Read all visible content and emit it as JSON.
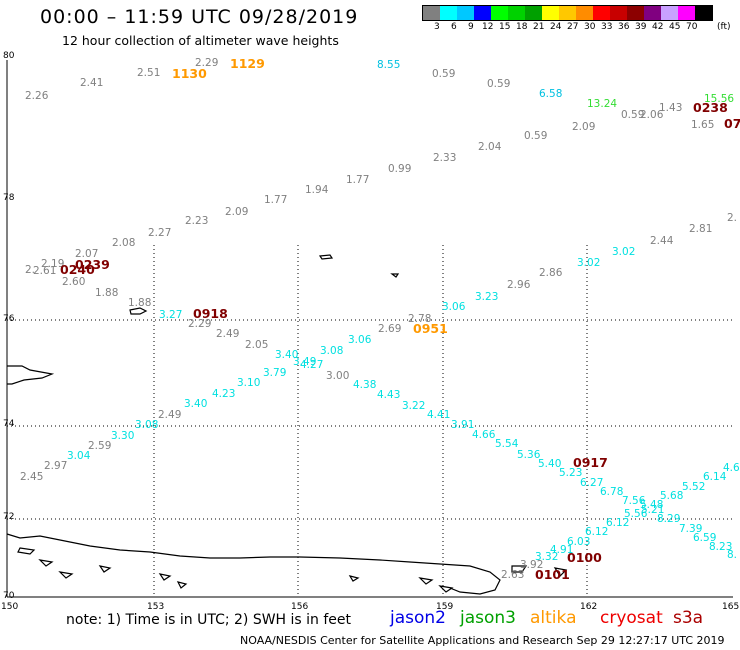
{
  "header": {
    "title": "00:00  –  11:59 UTC 09/28/2019",
    "subtitle": "12 hour collection of altimeter wave heights"
  },
  "legend": {
    "colors": [
      "#808080",
      "#00ffff",
      "#00c8ff",
      "#0000ff",
      "#00ff00",
      "#00d200",
      "#00a000",
      "#ffff00",
      "#ffc800",
      "#ff8c00",
      "#ff0000",
      "#c80000",
      "#8c0000",
      "#800080",
      "#c8a0ff",
      "#ff00ff",
      "#000000"
    ],
    "labels": [
      "3",
      "6",
      "9",
      "12",
      "15",
      "18",
      "21",
      "24",
      "27",
      "30",
      "33",
      "36",
      "39",
      "42",
      "45",
      "70"
    ],
    "unit": "(ft)"
  },
  "axes": {
    "lat_labels": [
      "80",
      "78",
      "76",
      "74",
      "72",
      "70"
    ],
    "lon_labels": [
      "150",
      "153",
      "156",
      "159",
      "162",
      "165"
    ]
  },
  "footer": {
    "note": "note:  1) Time is in UTC;  2) SWH is in feet",
    "satellites": [
      {
        "name": "jason2",
        "color": "#0000e6"
      },
      {
        "name": "jason3",
        "color": "#00a000"
      },
      {
        "name": "altika",
        "color": "#ff9900"
      },
      {
        "name": "cryosat",
        "color": "#ee0000"
      },
      {
        "name": "s3a",
        "color": "#aa0000"
      }
    ],
    "credit": "NOAA/NESDIS Center for Satellite Applications and Research    Sep 29 12:27:17 UTC 2019"
  },
  "time_labels": [
    {
      "text": "1130",
      "color": "#ff9900"
    },
    {
      "text": "1129",
      "color": "#ff9900"
    },
    {
      "text": "0238",
      "color": "#800000"
    },
    {
      "text": "07",
      "color": "#800000"
    },
    {
      "text": "0239",
      "color": "#800000"
    },
    {
      "text": "0240",
      "color": "#800000"
    },
    {
      "text": "0918",
      "color": "#800000"
    },
    {
      "text": "0951",
      "color": "#ff9900"
    },
    {
      "text": "0917",
      "color": "#800000"
    },
    {
      "text": "0100",
      "color": "#800000"
    },
    {
      "text": "0101",
      "color": "#800000"
    }
  ],
  "wave_heights": [
    {
      "text": "2.26",
      "color": "#808080"
    },
    {
      "text": "2.41",
      "color": "#808080"
    },
    {
      "text": "2.51",
      "color": "#808080"
    },
    {
      "text": "2.29",
      "color": "#808080"
    },
    {
      "text": "8.55",
      "color": "#00c0e0"
    },
    {
      "text": "0.59",
      "color": "#808080"
    },
    {
      "text": "0.59",
      "color": "#808080"
    },
    {
      "text": "6.58",
      "color": "#00c0e0"
    },
    {
      "text": "13.24",
      "color": "#33dd33"
    },
    {
      "text": "15.56",
      "color": "#33dd33"
    },
    {
      "text": "1.43",
      "color": "#808080"
    },
    {
      "text": "2.06",
      "color": "#808080"
    },
    {
      "text": "0.59",
      "color": "#808080"
    },
    {
      "text": "1.65",
      "color": "#808080"
    },
    {
      "text": "2.09",
      "color": "#808080"
    },
    {
      "text": "0.59",
      "color": "#808080"
    },
    {
      "text": "2.04",
      "color": "#808080"
    },
    {
      "text": "2.33",
      "color": "#808080"
    },
    {
      "text": "0.99",
      "color": "#808080"
    },
    {
      "text": "1.77",
      "color": "#808080"
    },
    {
      "text": "1.94",
      "color": "#808080"
    },
    {
      "text": "1.77",
      "color": "#808080"
    },
    {
      "text": "2.09",
      "color": "#808080"
    },
    {
      "text": "2.23",
      "color": "#808080"
    },
    {
      "text": "2.27",
      "color": "#808080"
    },
    {
      "text": "2.08",
      "color": "#808080"
    },
    {
      "text": "2.07",
      "color": "#808080"
    },
    {
      "text": "2.19",
      "color": "#808080"
    },
    {
      "text": "2.",
      "color": "#808080"
    },
    {
      "text": "2.61",
      "color": "#808080"
    },
    {
      "text": "2.60",
      "color": "#808080"
    },
    {
      "text": "1.88",
      "color": "#808080"
    },
    {
      "text": "1.88",
      "color": "#808080"
    },
    {
      "text": "3.27",
      "color": "#00e0e0"
    },
    {
      "text": "2.29",
      "color": "#808080"
    },
    {
      "text": "2.49",
      "color": "#808080"
    },
    {
      "text": "2.05",
      "color": "#808080"
    },
    {
      "text": "3.40",
      "color": "#00e0e0"
    },
    {
      "text": "3.49",
      "color": "#00e0e0"
    },
    {
      "text": "4.27",
      "color": "#00e0e0"
    },
    {
      "text": "3.08",
      "color": "#00e0e0"
    },
    {
      "text": "3.06",
      "color": "#00e0e0"
    },
    {
      "text": "2.69",
      "color": "#808080"
    },
    {
      "text": "2.78",
      "color": "#808080"
    },
    {
      "text": "3.06",
      "color": "#00e0e0"
    },
    {
      "text": "3.23",
      "color": "#00e0e0"
    },
    {
      "text": "2.96",
      "color": "#808080"
    },
    {
      "text": "2.86",
      "color": "#808080"
    },
    {
      "text": "3.02",
      "color": "#00e0e0"
    },
    {
      "text": "3.02",
      "color": "#00e0e0"
    },
    {
      "text": "2.44",
      "color": "#808080"
    },
    {
      "text": "2.81",
      "color": "#808080"
    },
    {
      "text": "2.",
      "color": "#808080"
    },
    {
      "text": "3.79",
      "color": "#00e0e0"
    },
    {
      "text": "3.00",
      "color": "#808080"
    },
    {
      "text": "3.10",
      "color": "#00e0e0"
    },
    {
      "text": "4.23",
      "color": "#00e0e0"
    },
    {
      "text": "3.40",
      "color": "#00e0e0"
    },
    {
      "text": "2.49",
      "color": "#808080"
    },
    {
      "text": "3.08",
      "color": "#00e0e0"
    },
    {
      "text": "3.30",
      "color": "#00e0e0"
    },
    {
      "text": "2.59",
      "color": "#808080"
    },
    {
      "text": "3.04",
      "color": "#00e0e0"
    },
    {
      "text": "2.97",
      "color": "#808080"
    },
    {
      "text": "2.45",
      "color": "#808080"
    },
    {
      "text": "4.38",
      "color": "#00e0e0"
    },
    {
      "text": "4.43",
      "color": "#00e0e0"
    },
    {
      "text": "3.22",
      "color": "#00e0e0"
    },
    {
      "text": "4.41",
      "color": "#00e0e0"
    },
    {
      "text": "3.91",
      "color": "#00e0e0"
    },
    {
      "text": "4.66",
      "color": "#00e0e0"
    },
    {
      "text": "5.54",
      "color": "#00e0e0"
    },
    {
      "text": "5.36",
      "color": "#00e0e0"
    },
    {
      "text": "5.40",
      "color": "#00e0e0"
    },
    {
      "text": "5.23",
      "color": "#00e0e0"
    },
    {
      "text": "6.27",
      "color": "#00e0e0"
    },
    {
      "text": "6.78",
      "color": "#00e0e0"
    },
    {
      "text": "7.56",
      "color": "#00e0e0"
    },
    {
      "text": "5.48",
      "color": "#00e0e0"
    },
    {
      "text": "5.56",
      "color": "#00e0e0"
    },
    {
      "text": "5.21",
      "color": "#00e0e0"
    },
    {
      "text": "5.68",
      "color": "#00e0e0"
    },
    {
      "text": "5.52",
      "color": "#00e0e0"
    },
    {
      "text": "6.14",
      "color": "#00e0e0"
    },
    {
      "text": "4.6",
      "color": "#00e0e0"
    },
    {
      "text": "6.12",
      "color": "#00e0e0"
    },
    {
      "text": "8.29",
      "color": "#00e0e0"
    },
    {
      "text": "6.12",
      "color": "#00e0e0"
    },
    {
      "text": "7.39",
      "color": "#00e0e0"
    },
    {
      "text": "6.03",
      "color": "#00e0e0"
    },
    {
      "text": "6.59",
      "color": "#00e0e0"
    },
    {
      "text": "8.23",
      "color": "#00e0e0"
    },
    {
      "text": "8.",
      "color": "#00e0e0"
    },
    {
      "text": "4.91",
      "color": "#00e0e0"
    },
    {
      "text": "3.32",
      "color": "#00e0e0"
    },
    {
      "text": "3.92",
      "color": "#808080"
    },
    {
      "text": "2.63",
      "color": "#808080"
    }
  ]
}
